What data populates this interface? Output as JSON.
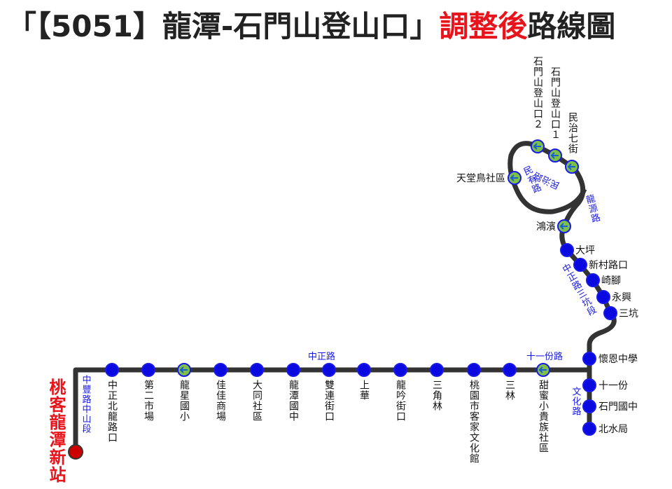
{
  "title": {
    "part1": "「【5051】龍潭-石門山登山口」",
    "part2": "調整後",
    "part3": "路線圖"
  },
  "terminal": "桃客龍潭新站",
  "bottom_stops": [
    "中正北龍路口",
    "第二市場",
    "龍星國小",
    "佳佳商場",
    "大同社區",
    "龍潭國中",
    "雙連街口",
    "上華",
    "龍吟街口",
    "三角林",
    "桃園市客家文化館",
    "三林",
    "甜蜜小貴族社區"
  ],
  "right_stops": [
    "懷恩中學",
    "十一份",
    "石門國中",
    "北水局"
  ],
  "upper_stops": [
    "三坑",
    "永興",
    "崎腳",
    "新村路口",
    "大坪",
    "鴻濱",
    "天堂鳥社區",
    "石門山登山口２",
    "石門山登山口１",
    "民治七街"
  ],
  "roads": [
    "中豐路中山段",
    "中正路",
    "十一份路",
    "文化路",
    "中正路三坑段",
    "龍源路",
    "民有路",
    "民治路"
  ]
}
